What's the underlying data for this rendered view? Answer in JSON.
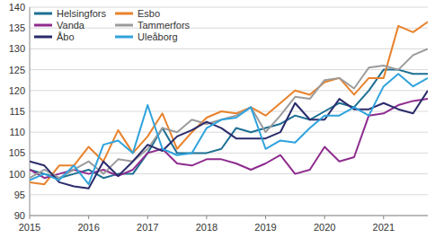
{
  "chart_data": {
    "type": "line",
    "categories": [
      "2015",
      null,
      null,
      null,
      "2016",
      null,
      null,
      null,
      "2017",
      null,
      null,
      null,
      "2018",
      null,
      null,
      null,
      "2019",
      null,
      null,
      null,
      "2020",
      null,
      null,
      null,
      "2021",
      null,
      null,
      null
    ],
    "series": [
      {
        "name": "Helsingfors",
        "color": "#1d6f93",
        "values": [
          101,
          100,
          99,
          100,
          101,
          99,
          100,
          100,
          105,
          111,
          105,
          105,
          105,
          106,
          111,
          110,
          111,
          112,
          114,
          113,
          115,
          117,
          116,
          120,
          125,
          125,
          124,
          124
        ]
      },
      {
        "name": "Esbo",
        "color": "#e8822c",
        "values": [
          98,
          97.5,
          102,
          102,
          106.5,
          103,
          110.5,
          105,
          109,
          114.5,
          106,
          110,
          113.5,
          115,
          114.5,
          116,
          114,
          117,
          120,
          119,
          122,
          123,
          119,
          123,
          123,
          135.5,
          134,
          136.5
        ]
      },
      {
        "name": "Vanda",
        "color": "#8e2c8e",
        "values": [
          101,
          99,
          100,
          101,
          100,
          101,
          99.5,
          101,
          105,
          106,
          102.5,
          102,
          103.5,
          103.5,
          102.5,
          101,
          102.5,
          104.5,
          100,
          101,
          106.5,
          103,
          104,
          114,
          114.5,
          116.5,
          117.5,
          118
        ]
      },
      {
        "name": "Tammerfors",
        "color": "#9b9b9b",
        "values": [
          99,
          101,
          99,
          101,
          103,
          100,
          103.5,
          103,
          106,
          111,
          110,
          113,
          112,
          113,
          114,
          116,
          110,
          114,
          118.5,
          118,
          122.5,
          123,
          120.5,
          125.5,
          126,
          125,
          128.5,
          130
        ]
      },
      {
        "name": "Åbo",
        "color": "#2a2b6b",
        "values": [
          103,
          102,
          98,
          97,
          96.5,
          103,
          99.5,
          103,
          107,
          105.5,
          109,
          110.5,
          112.5,
          111,
          108.5,
          108.5,
          108.5,
          110,
          117,
          113,
          113,
          118,
          115.5,
          115.5,
          117,
          115.5,
          114.5,
          120
        ]
      },
      {
        "name": "Uleåborg",
        "color": "#2fa3dc",
        "values": [
          98.5,
          100,
          98.5,
          102,
          97.5,
          107,
          108,
          105,
          116.5,
          106,
          104.5,
          105,
          111,
          113,
          113.5,
          116,
          106,
          108,
          107.5,
          111,
          114,
          114,
          116,
          114,
          121,
          124,
          121,
          123
        ]
      }
    ],
    "ylim": [
      90,
      140
    ],
    "yticks": [
      90,
      95,
      100,
      105,
      110,
      115,
      120,
      125,
      130,
      135,
      140
    ],
    "grid": true,
    "legend": "upper left"
  }
}
